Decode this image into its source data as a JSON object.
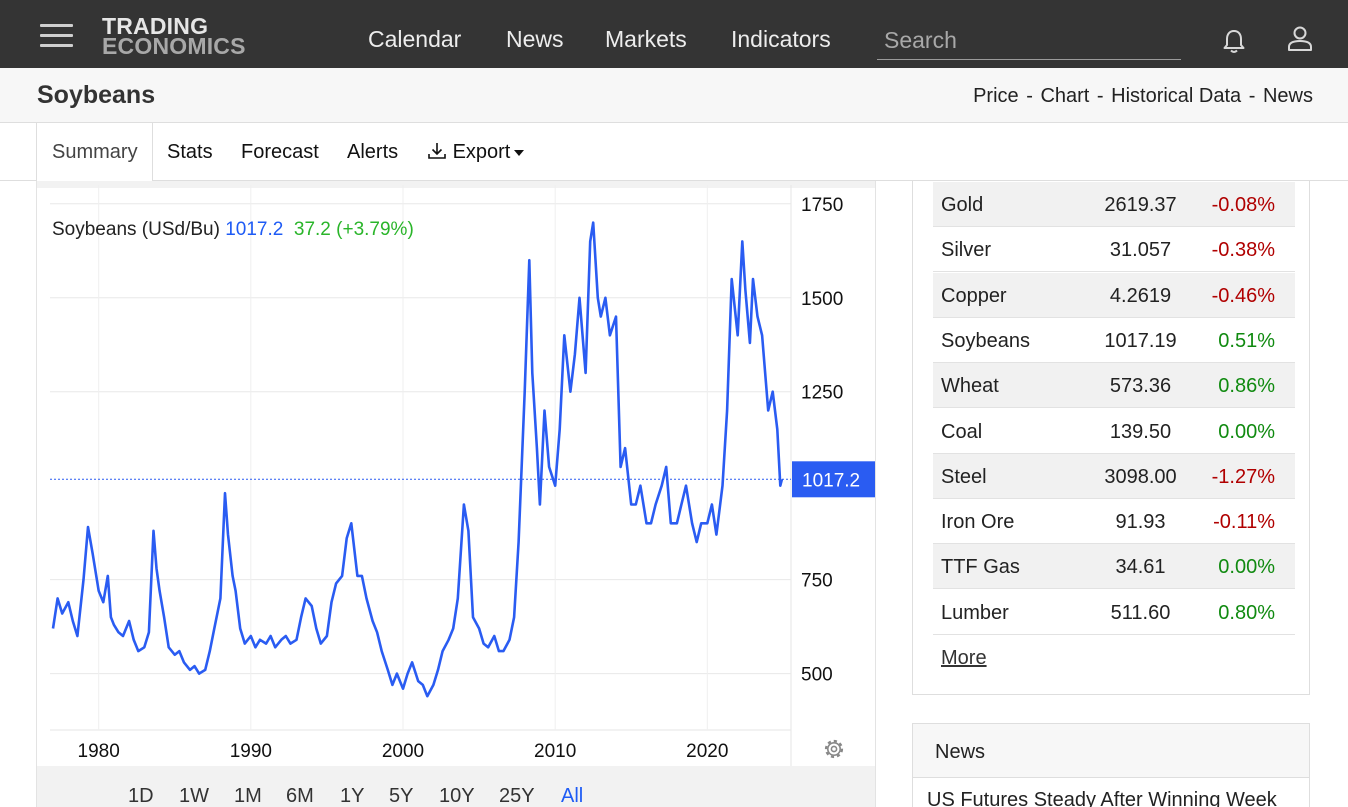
{
  "header": {
    "logo_line1": "TRADING",
    "logo_line2": "ECONOMICS",
    "nav": [
      "Calendar",
      "News",
      "Markets",
      "Indicators"
    ],
    "search_placeholder": "Search"
  },
  "subheader": {
    "title": "Soybeans",
    "links": [
      "Price",
      "Chart",
      "Historical Data",
      "News"
    ],
    "separator": "-"
  },
  "tabs": {
    "summary": "Summary",
    "stats": "Stats",
    "forecast": "Forecast",
    "alerts": "Alerts",
    "export": "Export"
  },
  "chart_data": {
    "type": "line",
    "legend_name": "Soybeans (USd/Bu)",
    "last_value": "1017.2",
    "change": "37.2 (+3.79%)",
    "price_label": "1017.2",
    "ylim": [
      350,
      1800
    ],
    "xlim": [
      1976.8,
      2025.5
    ],
    "yticks": [
      500,
      750,
      1250,
      1500,
      1750
    ],
    "xticks": [
      1980,
      1990,
      2000,
      2010,
      2020
    ],
    "grid": true,
    "line_color": "#2a5cf2",
    "x": [
      1977.0,
      1977.3,
      1977.6,
      1978.0,
      1978.3,
      1978.6,
      1979.0,
      1979.3,
      1979.6,
      1980.0,
      1980.3,
      1980.6,
      1980.8,
      1981.0,
      1981.3,
      1981.6,
      1982.0,
      1982.3,
      1982.6,
      1983.0,
      1983.3,
      1983.6,
      1983.8,
      1984.0,
      1984.3,
      1984.6,
      1985.0,
      1985.3,
      1985.6,
      1986.0,
      1986.3,
      1986.6,
      1987.0,
      1987.3,
      1987.6,
      1988.0,
      1988.3,
      1988.5,
      1988.8,
      1989.0,
      1989.3,
      1989.6,
      1990.0,
      1990.3,
      1990.6,
      1991.0,
      1991.3,
      1991.6,
      1992.0,
      1992.3,
      1992.6,
      1993.0,
      1993.3,
      1993.6,
      1994.0,
      1994.3,
      1994.6,
      1995.0,
      1995.3,
      1995.6,
      1996.0,
      1996.3,
      1996.6,
      1997.0,
      1997.3,
      1997.6,
      1998.0,
      1998.3,
      1998.6,
      1999.0,
      1999.3,
      1999.6,
      2000.0,
      2000.3,
      2000.6,
      2001.0,
      2001.3,
      2001.6,
      2002.0,
      2002.3,
      2002.6,
      2003.0,
      2003.3,
      2003.6,
      2004.0,
      2004.3,
      2004.6,
      2005.0,
      2005.3,
      2005.6,
      2006.0,
      2006.3,
      2006.6,
      2007.0,
      2007.3,
      2007.6,
      2008.0,
      2008.3,
      2008.5,
      2008.8,
      2009.0,
      2009.3,
      2009.6,
      2010.0,
      2010.3,
      2010.6,
      2011.0,
      2011.3,
      2011.6,
      2012.0,
      2012.3,
      2012.5,
      2012.8,
      2013.0,
      2013.3,
      2013.6,
      2014.0,
      2014.3,
      2014.6,
      2015.0,
      2015.3,
      2015.6,
      2016.0,
      2016.3,
      2016.6,
      2017.0,
      2017.3,
      2017.6,
      2018.0,
      2018.3,
      2018.6,
      2019.0,
      2019.3,
      2019.6,
      2020.0,
      2020.3,
      2020.6,
      2021.0,
      2021.3,
      2021.6,
      2022.0,
      2022.3,
      2022.5,
      2022.8,
      2023.0,
      2023.3,
      2023.6,
      2024.0,
      2024.3,
      2024.6,
      2024.8,
      2024.9
    ],
    "y": [
      620,
      700,
      660,
      690,
      640,
      600,
      750,
      890,
      820,
      720,
      690,
      760,
      650,
      630,
      610,
      600,
      640,
      590,
      560,
      570,
      610,
      880,
      780,
      720,
      650,
      570,
      550,
      560,
      530,
      510,
      520,
      500,
      510,
      560,
      620,
      700,
      980,
      870,
      760,
      720,
      620,
      580,
      600,
      570,
      590,
      580,
      600,
      570,
      590,
      600,
      580,
      590,
      650,
      700,
      680,
      620,
      580,
      600,
      690,
      740,
      760,
      860,
      900,
      760,
      760,
      700,
      640,
      610,
      560,
      510,
      470,
      500,
      460,
      500,
      530,
      480,
      470,
      440,
      470,
      510,
      560,
      590,
      620,
      700,
      950,
      880,
      650,
      620,
      580,
      570,
      600,
      560,
      560,
      590,
      650,
      850,
      1250,
      1600,
      1300,
      1100,
      950,
      1200,
      1050,
      1000,
      1150,
      1400,
      1250,
      1350,
      1500,
      1300,
      1650,
      1700,
      1500,
      1450,
      1500,
      1400,
      1450,
      1050,
      1100,
      950,
      950,
      1000,
      900,
      900,
      950,
      1000,
      1050,
      900,
      900,
      950,
      1000,
      900,
      850,
      900,
      900,
      950,
      870,
      1000,
      1200,
      1550,
      1400,
      1650,
      1520,
      1380,
      1550,
      1450,
      1400,
      1200,
      1250,
      1150,
      1000,
      1017
    ],
    "title": "",
    "xlabel": "",
    "ylabel": ""
  },
  "ranges": [
    "1D",
    "1W",
    "1M",
    "6M",
    "1Y",
    "5Y",
    "10Y",
    "25Y",
    "All"
  ],
  "active_range": "All",
  "commodities": [
    {
      "name": "Gold",
      "price": "2619.37",
      "pct": "-0.08%",
      "dir": "neg"
    },
    {
      "name": "Silver",
      "price": "31.057",
      "pct": "-0.38%",
      "dir": "neg"
    },
    {
      "name": "Copper",
      "price": "4.2619",
      "pct": "-0.46%",
      "dir": "neg"
    },
    {
      "name": "Soybeans",
      "price": "1017.19",
      "pct": "0.51%",
      "dir": "pos"
    },
    {
      "name": "Wheat",
      "price": "573.36",
      "pct": "0.86%",
      "dir": "pos"
    },
    {
      "name": "Coal",
      "price": "139.50",
      "pct": "0.00%",
      "dir": "pos"
    },
    {
      "name": "Steel",
      "price": "3098.00",
      "pct": "-1.27%",
      "dir": "neg"
    },
    {
      "name": "Iron Ore",
      "price": "91.93",
      "pct": "-0.11%",
      "dir": "neg"
    },
    {
      "name": "TTF Gas",
      "price": "34.61",
      "pct": "0.00%",
      "dir": "pos"
    },
    {
      "name": "Lumber",
      "price": "511.60",
      "pct": "0.80%",
      "dir": "pos"
    }
  ],
  "more_label": "More",
  "news": {
    "heading": "News",
    "first_item": "US Futures Steady After Winning Week"
  }
}
